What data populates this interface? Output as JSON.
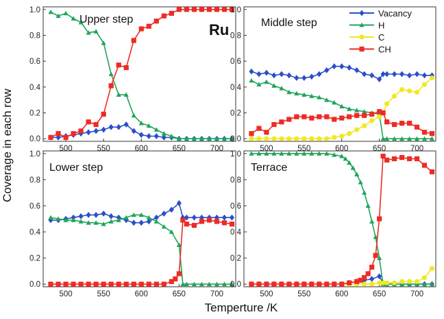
{
  "figure": {
    "xlabel": "Temperture /K",
    "ylabel": "Coverage in each row",
    "metal_label": "Ru"
  },
  "legend": [
    {
      "name": "Vacancy",
      "color": "#2a4fc7",
      "marker": "diamond"
    },
    {
      "name": "H",
      "color": "#1ea55a",
      "marker": "triangle"
    },
    {
      "name": "C",
      "color": "#f0e826",
      "marker": "circle"
    },
    {
      "name": "CH",
      "color": "#ee2b24",
      "marker": "square"
    }
  ],
  "chart_data": [
    {
      "type": "line",
      "title": "Upper step",
      "xlim": [
        470,
        725
      ],
      "ylim": [
        -0.02,
        1.02
      ],
      "xticks": [
        500,
        550,
        600,
        650,
        700
      ],
      "yticks": [
        0.0,
        0.2,
        0.4,
        0.6,
        0.8,
        1.0
      ],
      "yticklabels": [
        "0.0",
        "0.2",
        "0.4",
        "0.6",
        "0.8",
        "1.0"
      ],
      "series": [
        {
          "name": "Vacancy",
          "color": "#2a4fc7",
          "marker": "diamond",
          "x": [
            480,
            490,
            500,
            510,
            520,
            530,
            540,
            550,
            560,
            570,
            580,
            590,
            600,
            610,
            620,
            630,
            640,
            650,
            660,
            670,
            680,
            690,
            700,
            710,
            720
          ],
          "y": [
            0.01,
            0.01,
            0.02,
            0.03,
            0.04,
            0.05,
            0.06,
            0.07,
            0.09,
            0.09,
            0.11,
            0.06,
            0.03,
            0.02,
            0.02,
            0.01,
            0.01,
            0.0,
            0.0,
            0.0,
            0.0,
            0.0,
            0.0,
            0.0,
            0.0
          ]
        },
        {
          "name": "H",
          "color": "#1ea55a",
          "marker": "triangle",
          "x": [
            480,
            490,
            500,
            510,
            520,
            530,
            540,
            550,
            560,
            570,
            580,
            590,
            600,
            610,
            620,
            630,
            640,
            650,
            660,
            670,
            680,
            690,
            700,
            710,
            720
          ],
          "y": [
            0.98,
            0.95,
            0.97,
            0.93,
            0.9,
            0.82,
            0.83,
            0.74,
            0.5,
            0.34,
            0.34,
            0.18,
            0.12,
            0.1,
            0.07,
            0.04,
            0.02,
            0.0,
            0.0,
            0.0,
            0.0,
            0.0,
            0.0,
            0.0,
            0.0
          ]
        },
        {
          "name": "CH",
          "color": "#ee2b24",
          "marker": "square",
          "x": [
            480,
            490,
            500,
            510,
            520,
            530,
            540,
            550,
            560,
            570,
            580,
            590,
            600,
            610,
            620,
            630,
            640,
            650,
            660,
            670,
            680,
            690,
            700,
            710,
            720
          ],
          "y": [
            0.01,
            0.04,
            0.01,
            0.04,
            0.06,
            0.13,
            0.11,
            0.19,
            0.41,
            0.57,
            0.55,
            0.76,
            0.85,
            0.87,
            0.91,
            0.95,
            0.97,
            1.0,
            1.0,
            1.0,
            1.0,
            1.0,
            1.0,
            1.0,
            1.0
          ]
        }
      ]
    },
    {
      "type": "line",
      "title": "Middle step",
      "xlim": [
        470,
        725
      ],
      "ylim": [
        -0.02,
        1.02
      ],
      "xticks": [
        500,
        550,
        600,
        650,
        700
      ],
      "yticks": [
        0.0,
        0.2,
        0.4,
        0.6,
        0.8,
        1.0
      ],
      "yticklabels": [
        "0.0",
        "0.2",
        "0.4",
        "0.6",
        "0.8",
        "1.0"
      ],
      "series": [
        {
          "name": "Vacancy",
          "color": "#2a4fc7",
          "marker": "diamond",
          "x": [
            480,
            490,
            500,
            510,
            520,
            530,
            540,
            550,
            560,
            570,
            580,
            590,
            600,
            610,
            620,
            630,
            640,
            650,
            655,
            660,
            670,
            680,
            690,
            700,
            710,
            720
          ],
          "y": [
            0.52,
            0.5,
            0.51,
            0.49,
            0.5,
            0.49,
            0.47,
            0.47,
            0.48,
            0.5,
            0.53,
            0.56,
            0.56,
            0.55,
            0.53,
            0.5,
            0.49,
            0.46,
            0.5,
            0.5,
            0.5,
            0.5,
            0.49,
            0.5,
            0.49,
            0.49
          ]
        },
        {
          "name": "H",
          "color": "#1ea55a",
          "marker": "triangle",
          "x": [
            480,
            490,
            500,
            510,
            520,
            530,
            540,
            550,
            560,
            570,
            580,
            590,
            600,
            610,
            620,
            630,
            640,
            650,
            655,
            660,
            670,
            680,
            690,
            700,
            710,
            720
          ],
          "y": [
            0.45,
            0.42,
            0.44,
            0.41,
            0.39,
            0.36,
            0.35,
            0.34,
            0.33,
            0.32,
            0.3,
            0.28,
            0.25,
            0.23,
            0.22,
            0.21,
            0.2,
            0.19,
            0.0,
            0.0,
            0.0,
            0.0,
            0.0,
            0.0,
            0.0,
            0.0
          ]
        },
        {
          "name": "C",
          "color": "#f0e826",
          "marker": "circle",
          "x": [
            480,
            490,
            500,
            510,
            520,
            530,
            540,
            550,
            560,
            570,
            580,
            590,
            600,
            610,
            620,
            630,
            640,
            650,
            655,
            660,
            670,
            680,
            690,
            700,
            710,
            720
          ],
          "y": [
            0.0,
            0.0,
            0.0,
            0.0,
            0.0,
            0.0,
            0.0,
            0.0,
            0.0,
            0.0,
            0.0,
            0.01,
            0.02,
            0.04,
            0.07,
            0.1,
            0.14,
            0.17,
            0.2,
            0.27,
            0.33,
            0.38,
            0.37,
            0.36,
            0.42,
            0.47
          ]
        },
        {
          "name": "CH",
          "color": "#ee2b24",
          "marker": "square",
          "x": [
            480,
            490,
            500,
            510,
            520,
            530,
            540,
            550,
            560,
            570,
            580,
            590,
            600,
            610,
            620,
            630,
            640,
            650,
            655,
            660,
            670,
            680,
            690,
            700,
            710,
            720
          ],
          "y": [
            0.04,
            0.08,
            0.05,
            0.11,
            0.13,
            0.15,
            0.17,
            0.17,
            0.16,
            0.17,
            0.17,
            0.15,
            0.16,
            0.17,
            0.18,
            0.18,
            0.19,
            0.21,
            0.2,
            0.13,
            0.11,
            0.12,
            0.12,
            0.09,
            0.05,
            0.04
          ]
        }
      ]
    },
    {
      "type": "line",
      "title": "Lower step",
      "xlim": [
        470,
        725
      ],
      "ylim": [
        -0.02,
        1.02
      ],
      "xticks": [
        500,
        550,
        600,
        650,
        700
      ],
      "yticks": [
        0.0,
        0.2,
        0.4,
        0.6,
        0.8,
        1.0
      ],
      "yticklabels": [
        "0.0",
        "0.2",
        "0.4",
        "0.6",
        "0.8",
        "1.0"
      ],
      "series": [
        {
          "name": "Vacancy",
          "color": "#2a4fc7",
          "marker": "diamond",
          "x": [
            480,
            490,
            500,
            510,
            520,
            530,
            540,
            550,
            560,
            570,
            580,
            590,
            600,
            610,
            620,
            630,
            640,
            650,
            655,
            660,
            670,
            680,
            690,
            700,
            710,
            720
          ],
          "y": [
            0.49,
            0.49,
            0.5,
            0.51,
            0.52,
            0.53,
            0.53,
            0.54,
            0.52,
            0.51,
            0.49,
            0.47,
            0.47,
            0.48,
            0.51,
            0.54,
            0.57,
            0.62,
            0.51,
            0.51,
            0.51,
            0.51,
            0.51,
            0.51,
            0.51,
            0.51
          ]
        },
        {
          "name": "H",
          "color": "#1ea55a",
          "marker": "triangle",
          "x": [
            480,
            490,
            500,
            510,
            520,
            530,
            540,
            550,
            560,
            570,
            580,
            590,
            600,
            610,
            620,
            630,
            640,
            650,
            655,
            660,
            670,
            680,
            690,
            700,
            710,
            720
          ],
          "y": [
            0.51,
            0.5,
            0.49,
            0.49,
            0.48,
            0.47,
            0.47,
            0.46,
            0.48,
            0.49,
            0.51,
            0.53,
            0.53,
            0.51,
            0.48,
            0.44,
            0.4,
            0.3,
            0.0,
            0.0,
            0.0,
            0.0,
            0.0,
            0.0,
            0.0,
            0.0
          ]
        },
        {
          "name": "CH",
          "color": "#ee2b24",
          "marker": "square",
          "x": [
            480,
            490,
            500,
            510,
            520,
            530,
            540,
            550,
            560,
            570,
            580,
            590,
            600,
            610,
            620,
            630,
            640,
            645,
            650,
            655,
            660,
            670,
            680,
            690,
            700,
            710,
            720
          ],
          "y": [
            0.0,
            0.0,
            0.0,
            0.0,
            0.0,
            0.0,
            0.0,
            0.0,
            0.0,
            0.0,
            0.0,
            0.0,
            0.0,
            0.0,
            0.0,
            0.0,
            0.02,
            0.04,
            0.08,
            0.49,
            0.46,
            0.45,
            0.48,
            0.49,
            0.48,
            0.47,
            0.46
          ]
        }
      ]
    },
    {
      "type": "line",
      "title": "Terrace",
      "xlim": [
        470,
        725
      ],
      "ylim": [
        -0.02,
        1.02
      ],
      "xticks": [
        500,
        550,
        600,
        650,
        700
      ],
      "yticks": [
        0.0,
        0.2,
        0.4,
        0.6,
        0.8,
        1.0
      ],
      "yticklabels": [
        "0.0",
        "0.2",
        "0.4",
        "0.6",
        "0.8",
        "1.0"
      ],
      "series": [
        {
          "name": "Vacancy",
          "color": "#2a4fc7",
          "marker": "diamond",
          "x": [
            480,
            490,
            500,
            510,
            520,
            530,
            540,
            550,
            560,
            570,
            580,
            590,
            600,
            610,
            620,
            630,
            640,
            650,
            655,
            660,
            670,
            680,
            690,
            700,
            710,
            720
          ],
          "y": [
            0.0,
            0.0,
            0.0,
            0.0,
            0.0,
            0.0,
            0.0,
            0.0,
            0.0,
            0.0,
            0.0,
            0.0,
            0.0,
            0.01,
            0.02,
            0.03,
            0.04,
            0.06,
            0.01,
            0.0,
            0.0,
            0.0,
            0.0,
            0.0,
            0.0,
            0.0
          ]
        },
        {
          "name": "H",
          "color": "#1ea55a",
          "marker": "triangle",
          "x": [
            480,
            490,
            500,
            510,
            520,
            530,
            540,
            550,
            560,
            570,
            580,
            590,
            600,
            605,
            610,
            615,
            620,
            625,
            630,
            635,
            640,
            645,
            650,
            655,
            660,
            670,
            680,
            690,
            700,
            710,
            720
          ],
          "y": [
            1.0,
            1.0,
            1.0,
            1.0,
            1.0,
            1.0,
            1.0,
            1.0,
            1.0,
            1.0,
            1.0,
            0.99,
            0.98,
            0.96,
            0.93,
            0.89,
            0.84,
            0.78,
            0.7,
            0.6,
            0.48,
            0.36,
            0.2,
            0.0,
            0.0,
            0.0,
            0.0,
            0.0,
            0.0,
            0.0,
            0.0
          ]
        },
        {
          "name": "C",
          "color": "#f0e826",
          "marker": "circle",
          "x": [
            480,
            490,
            500,
            510,
            520,
            530,
            540,
            550,
            560,
            570,
            580,
            590,
            600,
            610,
            620,
            630,
            640,
            650,
            655,
            660,
            670,
            680,
            690,
            700,
            710,
            720
          ],
          "y": [
            0.0,
            0.0,
            0.0,
            0.0,
            0.0,
            0.0,
            0.0,
            0.0,
            0.0,
            0.0,
            0.0,
            0.0,
            0.0,
            0.0,
            0.0,
            0.0,
            0.0,
            0.01,
            0.01,
            0.01,
            0.01,
            0.02,
            0.02,
            0.02,
            0.05,
            0.12
          ]
        },
        {
          "name": "CH",
          "color": "#ee2b24",
          "marker": "square",
          "x": [
            480,
            490,
            500,
            510,
            520,
            530,
            540,
            550,
            560,
            570,
            580,
            590,
            600,
            610,
            620,
            625,
            630,
            635,
            640,
            645,
            650,
            655,
            660,
            670,
            680,
            690,
            700,
            710,
            720
          ],
          "y": [
            0.0,
            0.0,
            0.0,
            0.0,
            0.0,
            0.0,
            0.0,
            0.0,
            0.0,
            0.0,
            0.0,
            0.0,
            0.0,
            0.01,
            0.02,
            0.03,
            0.05,
            0.08,
            0.13,
            0.22,
            0.5,
            0.98,
            0.95,
            0.96,
            0.97,
            0.96,
            0.96,
            0.91,
            0.86
          ]
        }
      ]
    }
  ]
}
